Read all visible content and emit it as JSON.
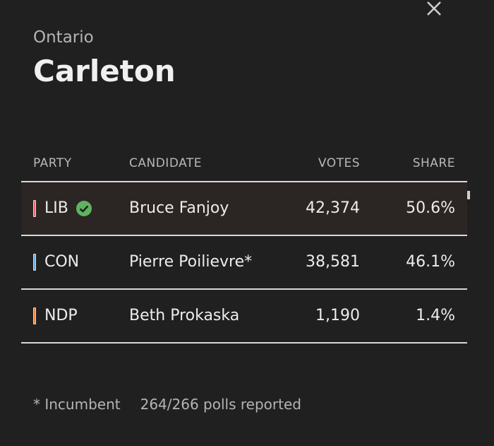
{
  "header": {
    "region": "Ontario",
    "title": "Carleton"
  },
  "table": {
    "columns": [
      "PARTY",
      "CANDIDATE",
      "VOTES",
      "SHARE"
    ],
    "rows": [
      {
        "party": "LIB",
        "color": "#e8646c",
        "winner": true,
        "candidate": "Bruce Fanjoy",
        "votes": "42,374",
        "share": "50.6%"
      },
      {
        "party": "CON",
        "color": "#6aa7de",
        "winner": false,
        "candidate": "Pierre Poilievre*",
        "votes": "38,581",
        "share": "46.1%"
      },
      {
        "party": "NDP",
        "color": "#f07f35",
        "winner": false,
        "candidate": "Beth Prokaska",
        "votes": "1,190",
        "share": "1.4%"
      }
    ]
  },
  "footer": {
    "note": "* Incumbent",
    "polls": "264/266 polls reported"
  }
}
